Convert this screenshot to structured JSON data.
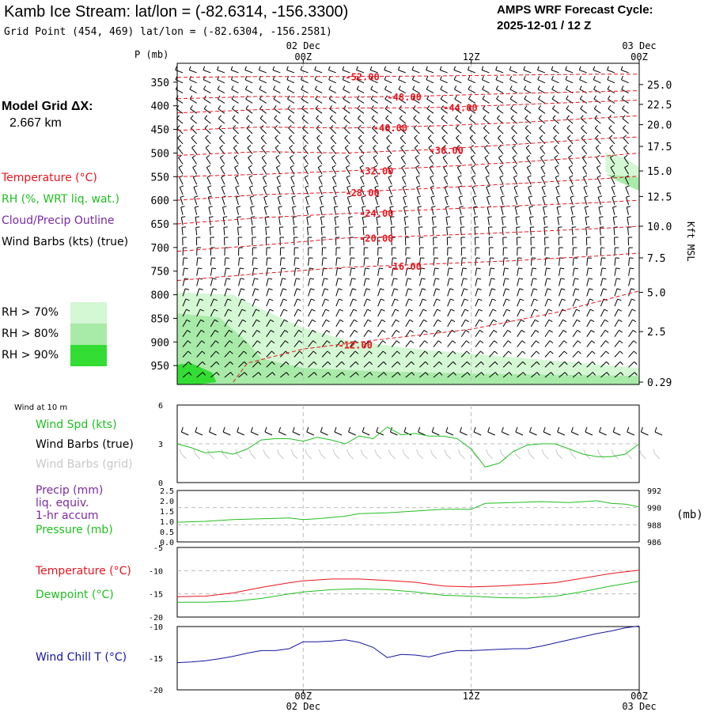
{
  "header": {
    "title": "Kamb Ice Stream:  lat/lon = (-82.6314, -156.3300)",
    "grid_point": "Grid Point (454, 469) lat/lon = (-82.6304, -156.2581)",
    "cycle_line1": "AMPS WRF Forecast Cycle:",
    "cycle_line2": "2025-12-01 / 12  Z",
    "p_label": "P (mb)",
    "model_grid_label": "Model Grid ΔX:",
    "model_grid_value": "2.667 km"
  },
  "colors": {
    "temperature": "#e8141e",
    "rh": "#1fbf1f",
    "cloud": "#7a2aa0",
    "wind": "#000000",
    "wind_grid": "#c8c8c8",
    "windchill": "#1414a0",
    "rh70": "#d4f7d4",
    "rh80": "#a8eaa8",
    "rh90": "#33dd33"
  },
  "legend": {
    "temperature": "Temperature (°C)",
    "rh": "RH (%, WRT liq. wat.)",
    "cloud": "Cloud/Precip Outline",
    "wind": "Wind Barbs (kts) (true)",
    "rh70": "RH > 70%",
    "rh80": "RH > 80%",
    "rh90": "RH > 90%"
  },
  "time_axis": {
    "top_labels": [
      {
        "date": "02 Dec",
        "time": "00Z"
      },
      {
        "date": "",
        "time": "12Z"
      },
      {
        "date": "03 Dec",
        "time": "00Z"
      }
    ],
    "bottom_labels": [
      {
        "time": "00Z",
        "date": "02 Dec"
      },
      {
        "time": "12Z",
        "date": ""
      },
      {
        "time": "00Z",
        "date": "03 Dec"
      }
    ],
    "hours": [
      0,
      12,
      24
    ],
    "range_hours": [
      -9,
      24
    ]
  },
  "chart_data": [
    {
      "type": "line",
      "name": "Vertical cross-section",
      "yaxis_left_label": "P (mb)",
      "yaxis_right_label": "Kft MSL",
      "pressure_ticks": [
        350,
        400,
        450,
        500,
        550,
        600,
        650,
        700,
        750,
        800,
        850,
        900,
        950
      ],
      "pressure_range": [
        310,
        990
      ],
      "height_ticks": [
        {
          "label": "25.0",
          "p": 355
        },
        {
          "label": "22.5",
          "p": 397
        },
        {
          "label": "20.0",
          "p": 440
        },
        {
          "label": "17.5",
          "p": 486
        },
        {
          "label": "15.0",
          "p": 538
        },
        {
          "label": "12.5",
          "p": 592
        },
        {
          "label": "10.0",
          "p": 655
        },
        {
          "label": "7.5",
          "p": 722
        },
        {
          "label": "5.0",
          "p": 795
        },
        {
          "label": "2.5",
          "p": 878
        },
        {
          "label": "0.29",
          "p": 985
        }
      ],
      "isotherms": [
        {
          "label": "-52.00",
          "label_hour": 3,
          "x": [
            -9,
            -3,
            3,
            9,
            15,
            21,
            24
          ],
          "p": [
            340,
            338,
            338,
            337,
            335,
            333,
            333
          ]
        },
        {
          "label": "-48.00",
          "label_hour": 6,
          "x": [
            -9,
            -3,
            3,
            9,
            15,
            21,
            24
          ],
          "p": [
            385,
            380,
            382,
            379,
            374,
            370,
            368
          ]
        },
        {
          "label": "-44.00",
          "label_hour": 10,
          "x": [
            -9,
            -3,
            3,
            9,
            15,
            21,
            24
          ],
          "p": [
            415,
            408,
            405,
            404,
            398,
            391,
            388
          ]
        },
        {
          "label": "-40.00",
          "label_hour": 5,
          "x": [
            -9,
            -3,
            3,
            9,
            15,
            21,
            24
          ],
          "p": [
            452,
            445,
            447,
            443,
            436,
            426,
            421
          ]
        },
        {
          "label": "-36.00",
          "label_hour": 9,
          "x": [
            -9,
            -3,
            3,
            9,
            15,
            21,
            24
          ],
          "p": [
            505,
            497,
            500,
            493,
            482,
            470,
            466
          ]
        },
        {
          "label": "-32.00",
          "label_hour": 4,
          "x": [
            -9,
            -3,
            3,
            9,
            15,
            21,
            24
          ],
          "p": [
            550,
            545,
            538,
            530,
            520,
            508,
            500
          ]
        },
        {
          "label": "-28.00",
          "label_hour": 3,
          "x": [
            -9,
            -3,
            3,
            9,
            15,
            21,
            24
          ],
          "p": [
            600,
            588,
            583,
            575,
            565,
            555,
            549
          ]
        },
        {
          "label": "-24.00",
          "label_hour": 4,
          "x": [
            -9,
            -3,
            3,
            9,
            15,
            21,
            24
          ],
          "p": [
            650,
            637,
            628,
            620,
            612,
            605,
            600
          ]
        },
        {
          "label": "-20.00",
          "label_hour": 4,
          "x": [
            -9,
            -3,
            3,
            9,
            15,
            21,
            24
          ],
          "p": [
            708,
            695,
            680,
            675,
            668,
            660,
            655
          ]
        },
        {
          "label": "-16.00",
          "label_hour": 6,
          "x": [
            -9,
            -3,
            3,
            9,
            15,
            21,
            24
          ],
          "p": [
            770,
            755,
            742,
            735,
            728,
            718,
            712
          ]
        },
        {
          "label": "-12.00",
          "label_hour": 2.5,
          "x": [
            -5,
            -4,
            0,
            6,
            12,
            18,
            24
          ],
          "p": [
            985,
            945,
            915,
            893,
            873,
            838,
            792
          ]
        }
      ],
      "rh_regions": [
        {
          "level": "rh70",
          "x": [
            -9,
            -5,
            -3,
            0,
            3,
            8,
            14,
            20,
            24,
            24,
            -9
          ],
          "p": [
            795,
            800,
            830,
            870,
            895,
            915,
            930,
            945,
            955,
            990,
            990
          ]
        },
        {
          "level": "rh80",
          "x": [
            -9,
            -6,
            -4,
            -3,
            0,
            5,
            12,
            20,
            24,
            24,
            -9
          ],
          "p": [
            840,
            848,
            900,
            935,
            955,
            962,
            967,
            970,
            972,
            990,
            990
          ]
        },
        {
          "level": "rh90",
          "x": [
            -9,
            -8,
            -6.5,
            -6.2,
            -7.5,
            -9
          ],
          "p": [
            948,
            945,
            965,
            985,
            990,
            990
          ]
        },
        {
          "level": "rh70",
          "x": [
            21.6,
            23,
            24,
            24,
            21.6
          ],
          "p": [
            500,
            510,
            530,
            570,
            540
          ]
        },
        {
          "level": "rh80",
          "x": [
            21.6,
            24,
            24,
            22.5
          ],
          "p": [
            545,
            552,
            580,
            560
          ]
        }
      ]
    },
    {
      "type": "line",
      "name": "Wind at 10 m",
      "title": "Wind at 10 m",
      "legend": [
        "Wind Spd (kts)",
        "Wind Barbs (true)",
        "Wind Barbs (grid)"
      ],
      "y_ticks": [
        "6",
        "3",
        "0"
      ],
      "ylim": [
        0,
        6
      ],
      "x": [
        -9,
        -8,
        -7,
        -6,
        -5,
        -4,
        -3,
        -2,
        -1,
        0,
        1,
        2,
        3,
        4,
        5,
        6,
        7,
        8,
        9,
        10,
        11,
        12,
        13,
        14,
        15,
        16,
        17,
        18,
        19,
        20,
        21,
        22,
        23,
        24
      ],
      "wind_speed": [
        3.0,
        2.7,
        2.3,
        2.4,
        2.2,
        2.6,
        3.3,
        3.4,
        3.4,
        3.2,
        3.5,
        3.3,
        3.0,
        3.6,
        3.4,
        4.3,
        3.7,
        3.8,
        3.6,
        3.6,
        3.4,
        2.6,
        1.2,
        1.5,
        2.4,
        2.9,
        3.0,
        3.0,
        2.6,
        2.2,
        2.0,
        2.0,
        2.2,
        3.0
      ]
    },
    {
      "type": "line",
      "name": "Precip and pressure",
      "legend": [
        "Precip (mm)",
        "liq. equiv.",
        "1-hr accum",
        "Pressure (mb)"
      ],
      "y_left_ticks": [
        "2.5",
        "2.0",
        "1.5",
        "1.0",
        "0.5",
        "0.0"
      ],
      "y_right_ticks": [
        "992",
        "990",
        "988",
        "986"
      ],
      "y_right_unit": "(mb)",
      "ylim_pressure": [
        986,
        992
      ],
      "ylim_precip": [
        0.0,
        2.5
      ],
      "x": [
        -9,
        -7,
        -5,
        -3,
        -1,
        0,
        1,
        3,
        4,
        6,
        8,
        10,
        12,
        13,
        15,
        17,
        19,
        20,
        21,
        22,
        23,
        24
      ],
      "pressure": [
        988.3,
        988.4,
        988.6,
        988.7,
        988.8,
        988.6,
        988.7,
        989.0,
        989.3,
        989.4,
        989.6,
        989.8,
        989.8,
        990.5,
        990.6,
        990.7,
        990.6,
        990.7,
        990.8,
        990.5,
        990.4,
        990.1
      ]
    },
    {
      "type": "line",
      "name": "Temperature and dewpoint",
      "legend": [
        "Temperature (°C)",
        "Dewpoint (°C)"
      ],
      "y_ticks": [
        "-5",
        "-10",
        "-15",
        "-20"
      ],
      "ylim": [
        -20,
        -5
      ],
      "x": [
        -9,
        -7,
        -5,
        -3,
        -1,
        0,
        2,
        4,
        6,
        8,
        10,
        12,
        14,
        16,
        18,
        20,
        22,
        24
      ],
      "temperature": [
        -15.6,
        -15.5,
        -14.8,
        -13.6,
        -12.6,
        -12.2,
        -11.8,
        -11.8,
        -12.1,
        -12.5,
        -13.3,
        -13.5,
        -13.3,
        -13.0,
        -12.6,
        -11.6,
        -10.6,
        -9.9
      ],
      "dewpoint": [
        -16.8,
        -16.8,
        -16.6,
        -16.0,
        -15.0,
        -14.6,
        -14.1,
        -13.9,
        -14.1,
        -14.6,
        -15.3,
        -15.5,
        -15.8,
        -15.9,
        -15.5,
        -14.5,
        -13.3,
        -12.3
      ]
    },
    {
      "type": "line",
      "name": "Wind chill",
      "legend": [
        "Wind Chill T (°C)"
      ],
      "y_ticks": [
        "-10",
        "-15",
        "-20"
      ],
      "ylim": [
        -20,
        -10
      ],
      "x": [
        -9,
        -8,
        -7,
        -6,
        -5,
        -4,
        -3,
        -2,
        -1,
        0,
        1,
        2,
        3,
        4,
        5,
        6,
        7,
        8,
        9,
        10,
        11,
        12,
        13,
        14,
        15,
        16,
        17,
        18,
        19,
        20,
        21,
        22,
        23,
        24
      ],
      "windchill": [
        -15.7,
        -15.6,
        -15.4,
        -15.1,
        -14.7,
        -14.2,
        -13.8,
        -13.8,
        -13.5,
        -12.4,
        -12.4,
        -12.3,
        -12.1,
        -12.5,
        -13.3,
        -14.9,
        -14.4,
        -14.5,
        -14.8,
        -14.2,
        -13.8,
        -13.8,
        -13.7,
        -13.6,
        -13.5,
        -13.5,
        -13.1,
        -12.6,
        -12.1,
        -11.6,
        -11.1,
        -10.7,
        -10.2,
        -9.9
      ]
    }
  ]
}
